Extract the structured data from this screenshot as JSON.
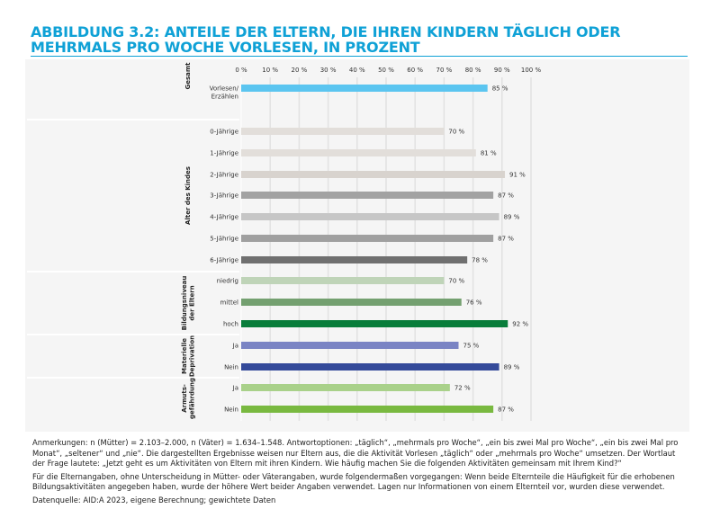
{
  "title": "ABBILDUNG 3.2: ANTEILE DER ELTERN, DIE IHREN KINDERN TÄGLICH ODER MEHRMALS PRO WOCHE VORLESEN, IN PROZENT",
  "chart_data": {
    "type": "bar",
    "orientation": "horizontal",
    "xlim": [
      0,
      100
    ],
    "x_ticks": [
      "0 %",
      "10 %",
      "20 %",
      "30 %",
      "40 %",
      "50 %",
      "60 %",
      "70 %",
      "80 %",
      "90 %",
      "100 %"
    ],
    "grid": true,
    "groups": [
      {
        "label": "Gesamt",
        "bars": [
          {
            "label": "Vorlesen/\nErzählen",
            "value": 85,
            "value_label": "85 %",
            "color": "#5bc5f0"
          }
        ]
      },
      {
        "label": "Alter des Kindes",
        "bars": [
          {
            "label": "0-Jährige",
            "value": 70,
            "value_label": "70 %",
            "color": "#e2deda"
          },
          {
            "label": "1-Jährige",
            "value": 81,
            "value_label": "81 %",
            "color": "#e2deda"
          },
          {
            "label": "2-Jährige",
            "value": 91,
            "value_label": "91 %",
            "color": "#d8d3ce"
          },
          {
            "label": "3-Jährige",
            "value": 87,
            "value_label": "87 %",
            "color": "#a2a2a2"
          },
          {
            "label": "4-Jährige",
            "value": 89,
            "value_label": "89 %",
            "color": "#c6c6c6"
          },
          {
            "label": "5-Jährige",
            "value": 87,
            "value_label": "87 %",
            "color": "#a0a0a0"
          },
          {
            "label": "6-Jährige",
            "value": 78,
            "value_label": "78 %",
            "color": "#707070"
          }
        ]
      },
      {
        "label": "Bildungsniveau\nder Eltern",
        "bars": [
          {
            "label": "niedrig",
            "value": 70,
            "value_label": "70 %",
            "color": "#bfd4b8"
          },
          {
            "label": "mittel",
            "value": 76,
            "value_label": "76 %",
            "color": "#74a070"
          },
          {
            "label": "hoch",
            "value": 92,
            "value_label": "92 %",
            "color": "#087d3a"
          }
        ]
      },
      {
        "label": "Materielle\nDeprivation",
        "bars": [
          {
            "label": "Ja",
            "value": 75,
            "value_label": "75 %",
            "color": "#7a84c4"
          },
          {
            "label": "Nein",
            "value": 89,
            "value_label": "89 %",
            "color": "#344a9a"
          }
        ]
      },
      {
        "label": "Armuts-\ngefährdung",
        "bars": [
          {
            "label": "Ja",
            "value": 72,
            "value_label": "72 %",
            "color": "#a9d18a"
          },
          {
            "label": "Nein",
            "value": 87,
            "value_label": "87 %",
            "color": "#79b940"
          }
        ]
      }
    ]
  },
  "notes": [
    "Anmerkungen: n (Mütter) = 2.103–2.000, n (Väter) = 1.634–1.548. Antwortoptionen: „täglich“, „mehrmals pro Woche“, „ein bis zwei Mal pro Woche“, „ein bis zwei Mal pro Monat“, „sel­tener“ und „nie“. Die dargestellten Ergebnisse weisen nur Eltern aus, die die Aktivität Vorlesen „täglich“ oder „mehrmals pro Woche“ umsetzen. Der Wortlaut der Frage lautete: „Jetzt geht es um Aktivitäten von Eltern mit ihren Kindern. Wie häufig machen Sie die folgenden Aktivitäten gemeinsam mit Ihrem Kind?“",
    "Für die Elternangaben, ohne Unterscheidung in Mütter- oder Väterangaben, wurde folgendermaßen vorgegangen: Wenn beide Elternteile die Häufigkeit für die erhobenen Bildungs­aktivitäten angegeben haben, wurde der höhere Wert beider Angaben verwendet. Lagen nur Informationen von einem Elternteil vor, wurden diese verwendet.",
    "Datenquelle: AID:A 2023, eigene Berechnung; gewichtete Daten"
  ]
}
